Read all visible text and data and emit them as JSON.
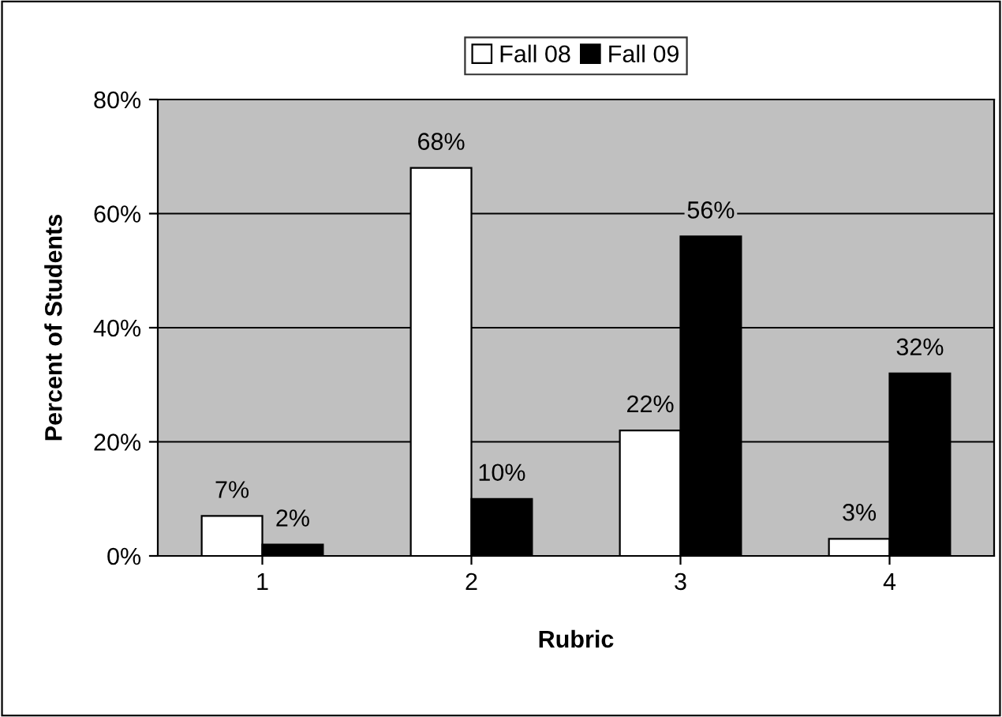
{
  "chart_data": {
    "type": "bar",
    "xlabel": "Rubric",
    "ylabel": "Percent of Students",
    "categories": [
      "1",
      "2",
      "3",
      "4"
    ],
    "series": [
      {
        "name": "Fall 08",
        "color": "#ffffff",
        "values": [
          7,
          68,
          22,
          3
        ],
        "value_labels": [
          "7%",
          "68%",
          "22%",
          "3%"
        ]
      },
      {
        "name": "Fall 09",
        "color": "#000000",
        "values": [
          2,
          10,
          56,
          32
        ],
        "value_labels": [
          "2%",
          "10%",
          "56%",
          "32%"
        ]
      }
    ],
    "ylim": [
      0,
      80
    ],
    "yticks": [
      {
        "value": 0,
        "label": "0%"
      },
      {
        "value": 20,
        "label": "20%"
      },
      {
        "value": 40,
        "label": "40%"
      },
      {
        "value": 60,
        "label": "60%"
      },
      {
        "value": 80,
        "label": "80%"
      }
    ],
    "grid": "y",
    "legend": "top"
  }
}
